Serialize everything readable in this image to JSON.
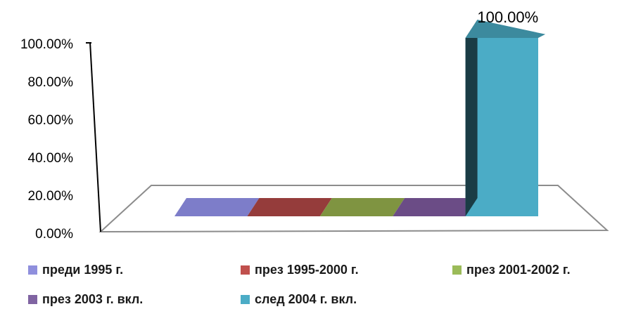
{
  "chart_data": {
    "type": "bar",
    "style": "3d",
    "categories": [
      "преди 1995 г.",
      "през 1995-2000 г.",
      "през 2001-2002 г.",
      "през 2003 г. вкл.",
      "след 2004 г. вкл."
    ],
    "series": [
      {
        "name": "преди 1995 г.",
        "value": 0,
        "color": "#7d7dc9"
      },
      {
        "name": "през 1995-2000 г.",
        "value": 0,
        "color": "#953c3b"
      },
      {
        "name": "през 2001-2002 г.",
        "value": 0,
        "color": "#7f9441"
      },
      {
        "name": "през 2003 г. вкл.",
        "value": 0,
        "color": "#6b4c86"
      },
      {
        "name": "след 2004 г. вкл.",
        "value": 100,
        "color": "#4bacc6"
      }
    ],
    "data_labels": [
      "",
      "",
      "",
      "",
      "100.00%"
    ],
    "yticks": [
      "0.00%",
      "20.00%",
      "40.00%",
      "60.00%",
      "80.00%",
      "100.00%"
    ],
    "ylim": [
      0,
      100
    ],
    "title": "",
    "xlabel": "",
    "ylabel": "",
    "legend_position": "bottom",
    "grid": false
  }
}
